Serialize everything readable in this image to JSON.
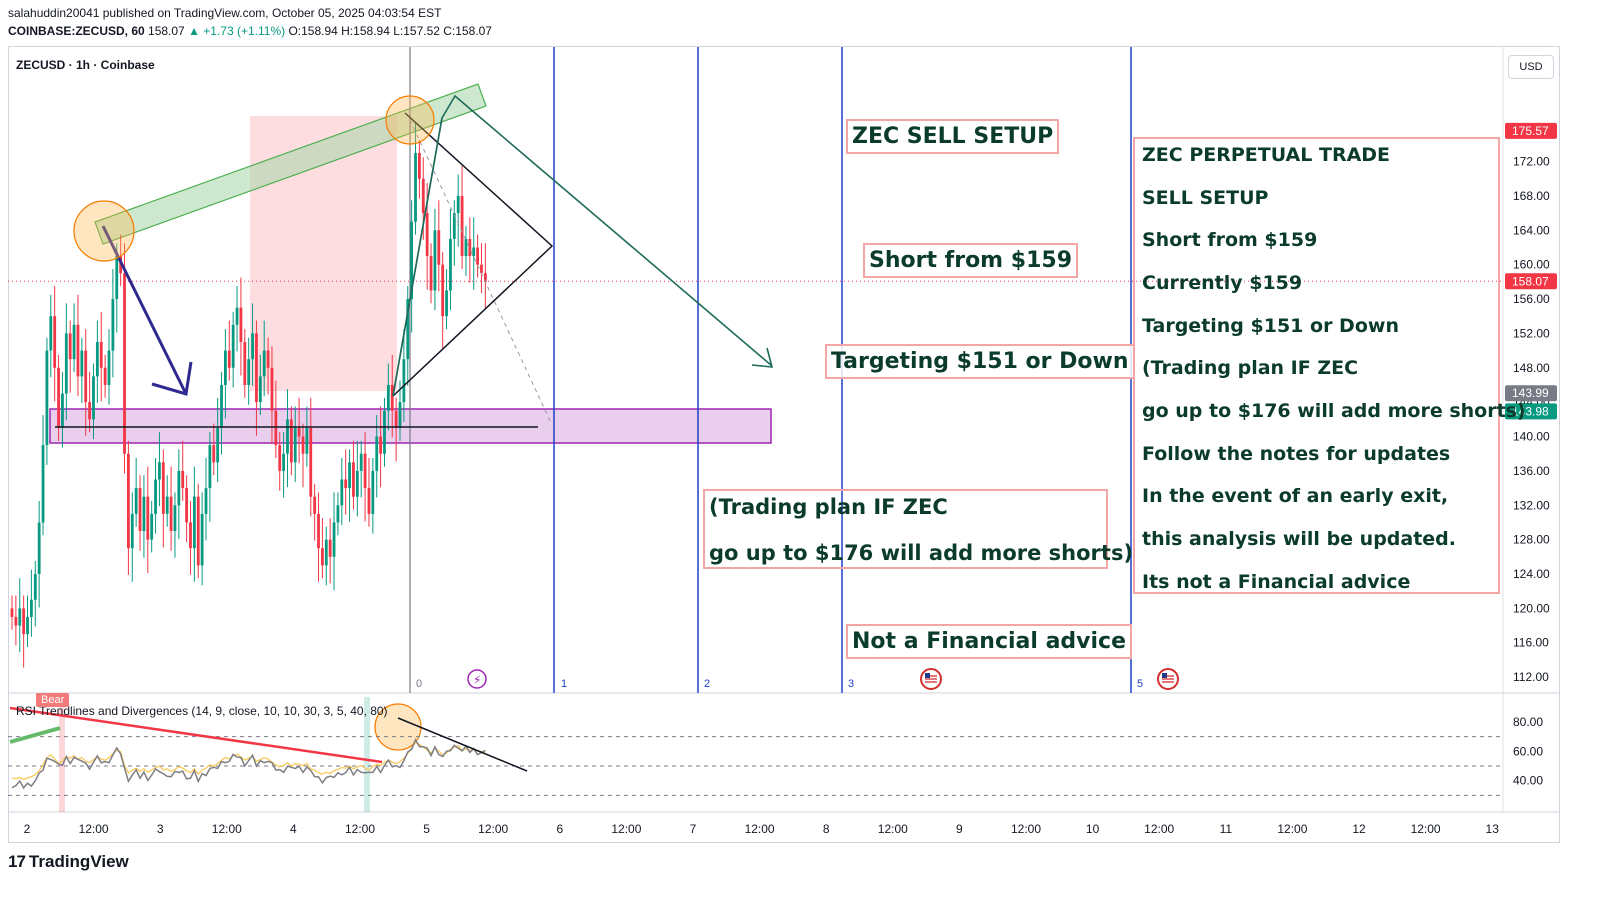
{
  "header": {
    "publisher": "salahuddin20041 published on TradingView.com, October 05, 2025 04:03:54 EST",
    "symbol": "COINBASE:ZECUSD, 60",
    "last": "158.07",
    "change": "▲ +1.73 (+1.11%)",
    "ohlc": "O:158.94 H:158.94 L:157.52 C:158.07"
  },
  "chart_title": "ZECUSD · 1h · Coinbase",
  "currency_button": "USD",
  "brand": "TradingView",
  "colors": {
    "up": "#089981",
    "down": "#f23645",
    "zone": "#e1bee7",
    "zone_border": "#9c27b0",
    "channel": "#a5d6a7",
    "trend_arrow": "#1e6b5a",
    "blue_arrow": "#2e2a8f",
    "vline": "#1e40c8",
    "note_border": "#f4a6a6",
    "note_text": "#0b3b2b"
  },
  "notes": {
    "sell_setup": "ZEC SELL SETUP",
    "short_from": "Short from $159",
    "targeting": "Targeting $151 or Down",
    "not_advice": "Not a Financial advice",
    "plan_small": [
      "(Trading plan IF ZEC",
      "go up to $176 will add more shorts)"
    ],
    "plan_big": [
      "ZEC PERPETUAL TRADE",
      "SELL SETUP",
      "Short from $159",
      "Currently $159",
      "Targeting $151 or Down",
      "(Trading plan IF ZEC",
      "go up to $176 will add more shorts)",
      "Follow the notes for updates",
      "In the event of an early exit,",
      "this analysis will be updated.",
      "Its not a Financial advice"
    ]
  },
  "bar_numbers": [
    "0",
    "1",
    "2",
    "3",
    "5"
  ],
  "rsi": {
    "label": "RSI Trendlines and Divergences (14, 9, close, 10, 10, 30, 3, 5, 40, 80)",
    "bear_tag": "Bear",
    "ticks": [
      "80.00",
      "60.00",
      "40.00"
    ]
  },
  "chart_data": {
    "type": "candlestick",
    "title": "ZECUSD · 1h · Coinbase",
    "y_ticks": [
      "172.00",
      "168.00",
      "164.00",
      "160.00",
      "156.00",
      "152.00",
      "148.00",
      "144.00",
      "140.00",
      "136.00",
      "132.00",
      "128.00",
      "124.00",
      "120.00",
      "116.00",
      "112.00"
    ],
    "ylim": [
      110.5,
      178
    ],
    "x_ticks": [
      "2",
      "12:00",
      "3",
      "12:00",
      "4",
      "12:00",
      "5",
      "12:00",
      "6",
      "12:00",
      "7",
      "12:00",
      "8",
      "12:00",
      "9",
      "12:00",
      "10",
      "12:00",
      "11",
      "12:00",
      "12",
      "12:00",
      "13"
    ],
    "price_tags": [
      {
        "label": "175.57",
        "value": 175.57,
        "color": "#f23645"
      },
      {
        "label": "158.07",
        "value": 158.07,
        "color": "#f23645"
      },
      {
        "label": "143.99",
        "value": 143.99,
        "color": "#787b86"
      },
      {
        "label": "143.98",
        "value": 143.98,
        "color": "#089981"
      }
    ],
    "current_price": 158.07,
    "annotations": [
      "ZEC SELL SETUP",
      "Short from $159",
      "Targeting $151 or Down",
      "Not a Financial advice"
    ],
    "series": [
      {
        "name": "ZECUSD",
        "closes": [
          119,
          118,
          120,
          117,
          119,
          121,
          124,
          130,
          139,
          150,
          154,
          148,
          141,
          145,
          152,
          149,
          153,
          147,
          150,
          144,
          142,
          147,
          151,
          148,
          146,
          150,
          156,
          161,
          159,
          138,
          127,
          131,
          134,
          129,
          133,
          128,
          131,
          135,
          137,
          131,
          133,
          129,
          132,
          136,
          134,
          130,
          127,
          133,
          125,
          131,
          134,
          139,
          137,
          141,
          146,
          150,
          148,
          153,
          155,
          151,
          146,
          149,
          152,
          144,
          147,
          150,
          148,
          143,
          139,
          136,
          138,
          142,
          137,
          141,
          140,
          138,
          141,
          133,
          131,
          127,
          125,
          128,
          126,
          130,
          132,
          135,
          134,
          137,
          133,
          136,
          138,
          134,
          131,
          136,
          140,
          138,
          143,
          146,
          143,
          141,
          144,
          149,
          156,
          165,
          173,
          170,
          166,
          161,
          157,
          164,
          160,
          154,
          157,
          163,
          166,
          168,
          161,
          163,
          161,
          162,
          160,
          159,
          158
        ]
      }
    ]
  }
}
